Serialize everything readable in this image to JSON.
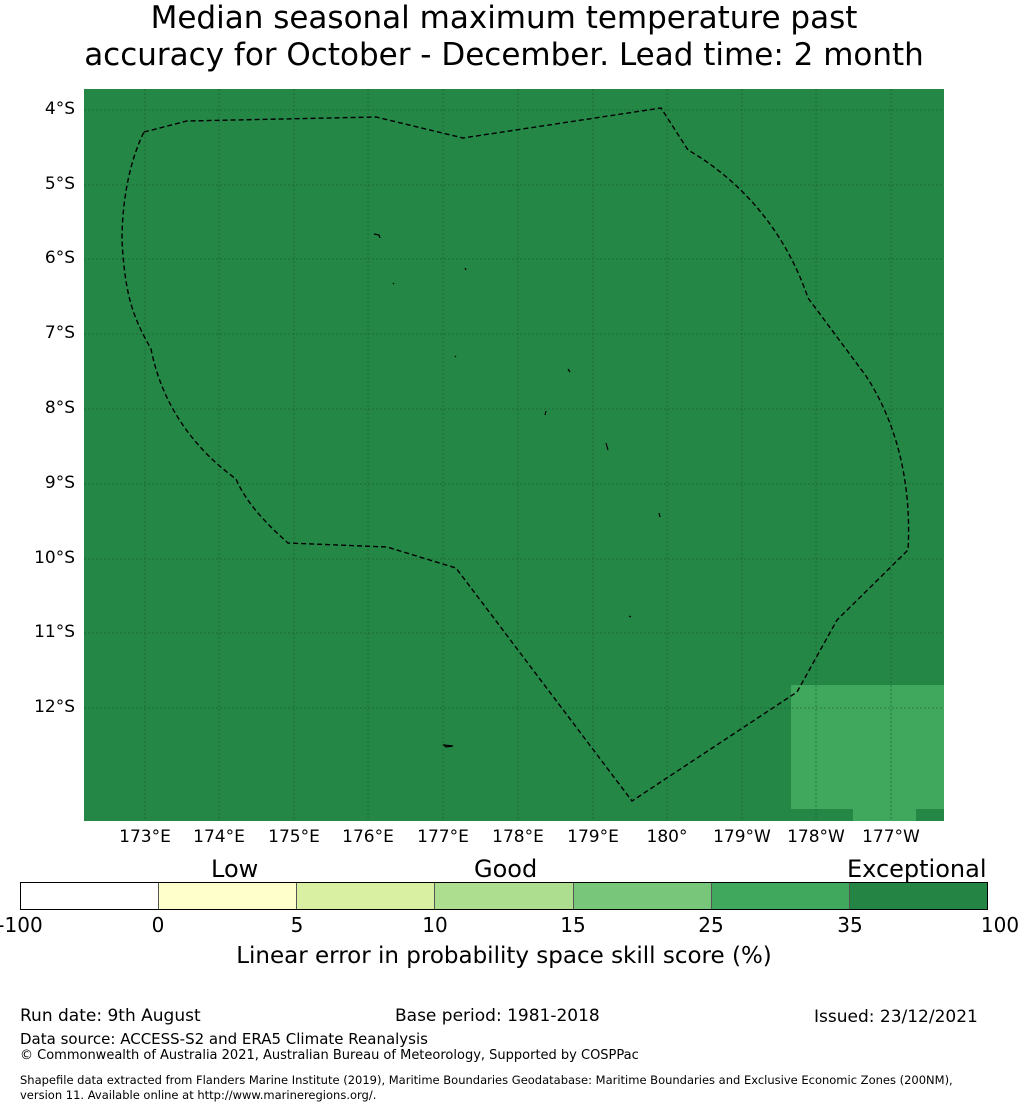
{
  "title": {
    "line1": "Median seasonal maximum temperature past",
    "line2": "accuracy for October - December. Lead time: 2 month"
  },
  "map": {
    "colors": {
      "ocean_skill": "#248745",
      "patch_skill": "#3fa85c",
      "eez_line": "#000000",
      "gridline": "#1a5c30"
    },
    "lat_labels": [
      "4°S",
      "5°S",
      "6°S",
      "7°S",
      "8°S",
      "9°S",
      "10°S",
      "11°S",
      "12°S"
    ],
    "lon_labels": [
      "173°E",
      "174°E",
      "175°E",
      "176°E",
      "177°E",
      "178°E",
      "179°E",
      "180°",
      "179°W",
      "178°W",
      "177°W"
    ]
  },
  "colorbar": {
    "categories": [
      "Low",
      "Good",
      "Exceptional"
    ],
    "ticks": [
      "-100",
      "0",
      "5",
      "10",
      "15",
      "25",
      "35",
      "100"
    ],
    "colors": [
      "#ffffff",
      "#ffffcc",
      "#d9f0a3",
      "#addd8e",
      "#78c679",
      "#3fa85c",
      "#238443"
    ],
    "label": "Linear error in probability space skill score (%)"
  },
  "footer": {
    "run_date": "Run date: 9th August",
    "base_period": "Base period: 1981-2018",
    "issued": "Issued: 23/12/2021",
    "data_source": "Data source: ACCESS-S2 and ERA5 Climate Reanalysis",
    "copyright": "© Commonwealth of Australia 2021, Australian Bureau of Meteorology, Supported by COSPPac",
    "shapefile_line1": "Shapefile data extracted from Flanders Marine Institute (2019), Maritime Boundaries Geodatabase: Maritime Boundaries and Exclusive Economic Zones (200NM),",
    "shapefile_line2": "version 11. Available online at http://www.marineregions.org/."
  }
}
